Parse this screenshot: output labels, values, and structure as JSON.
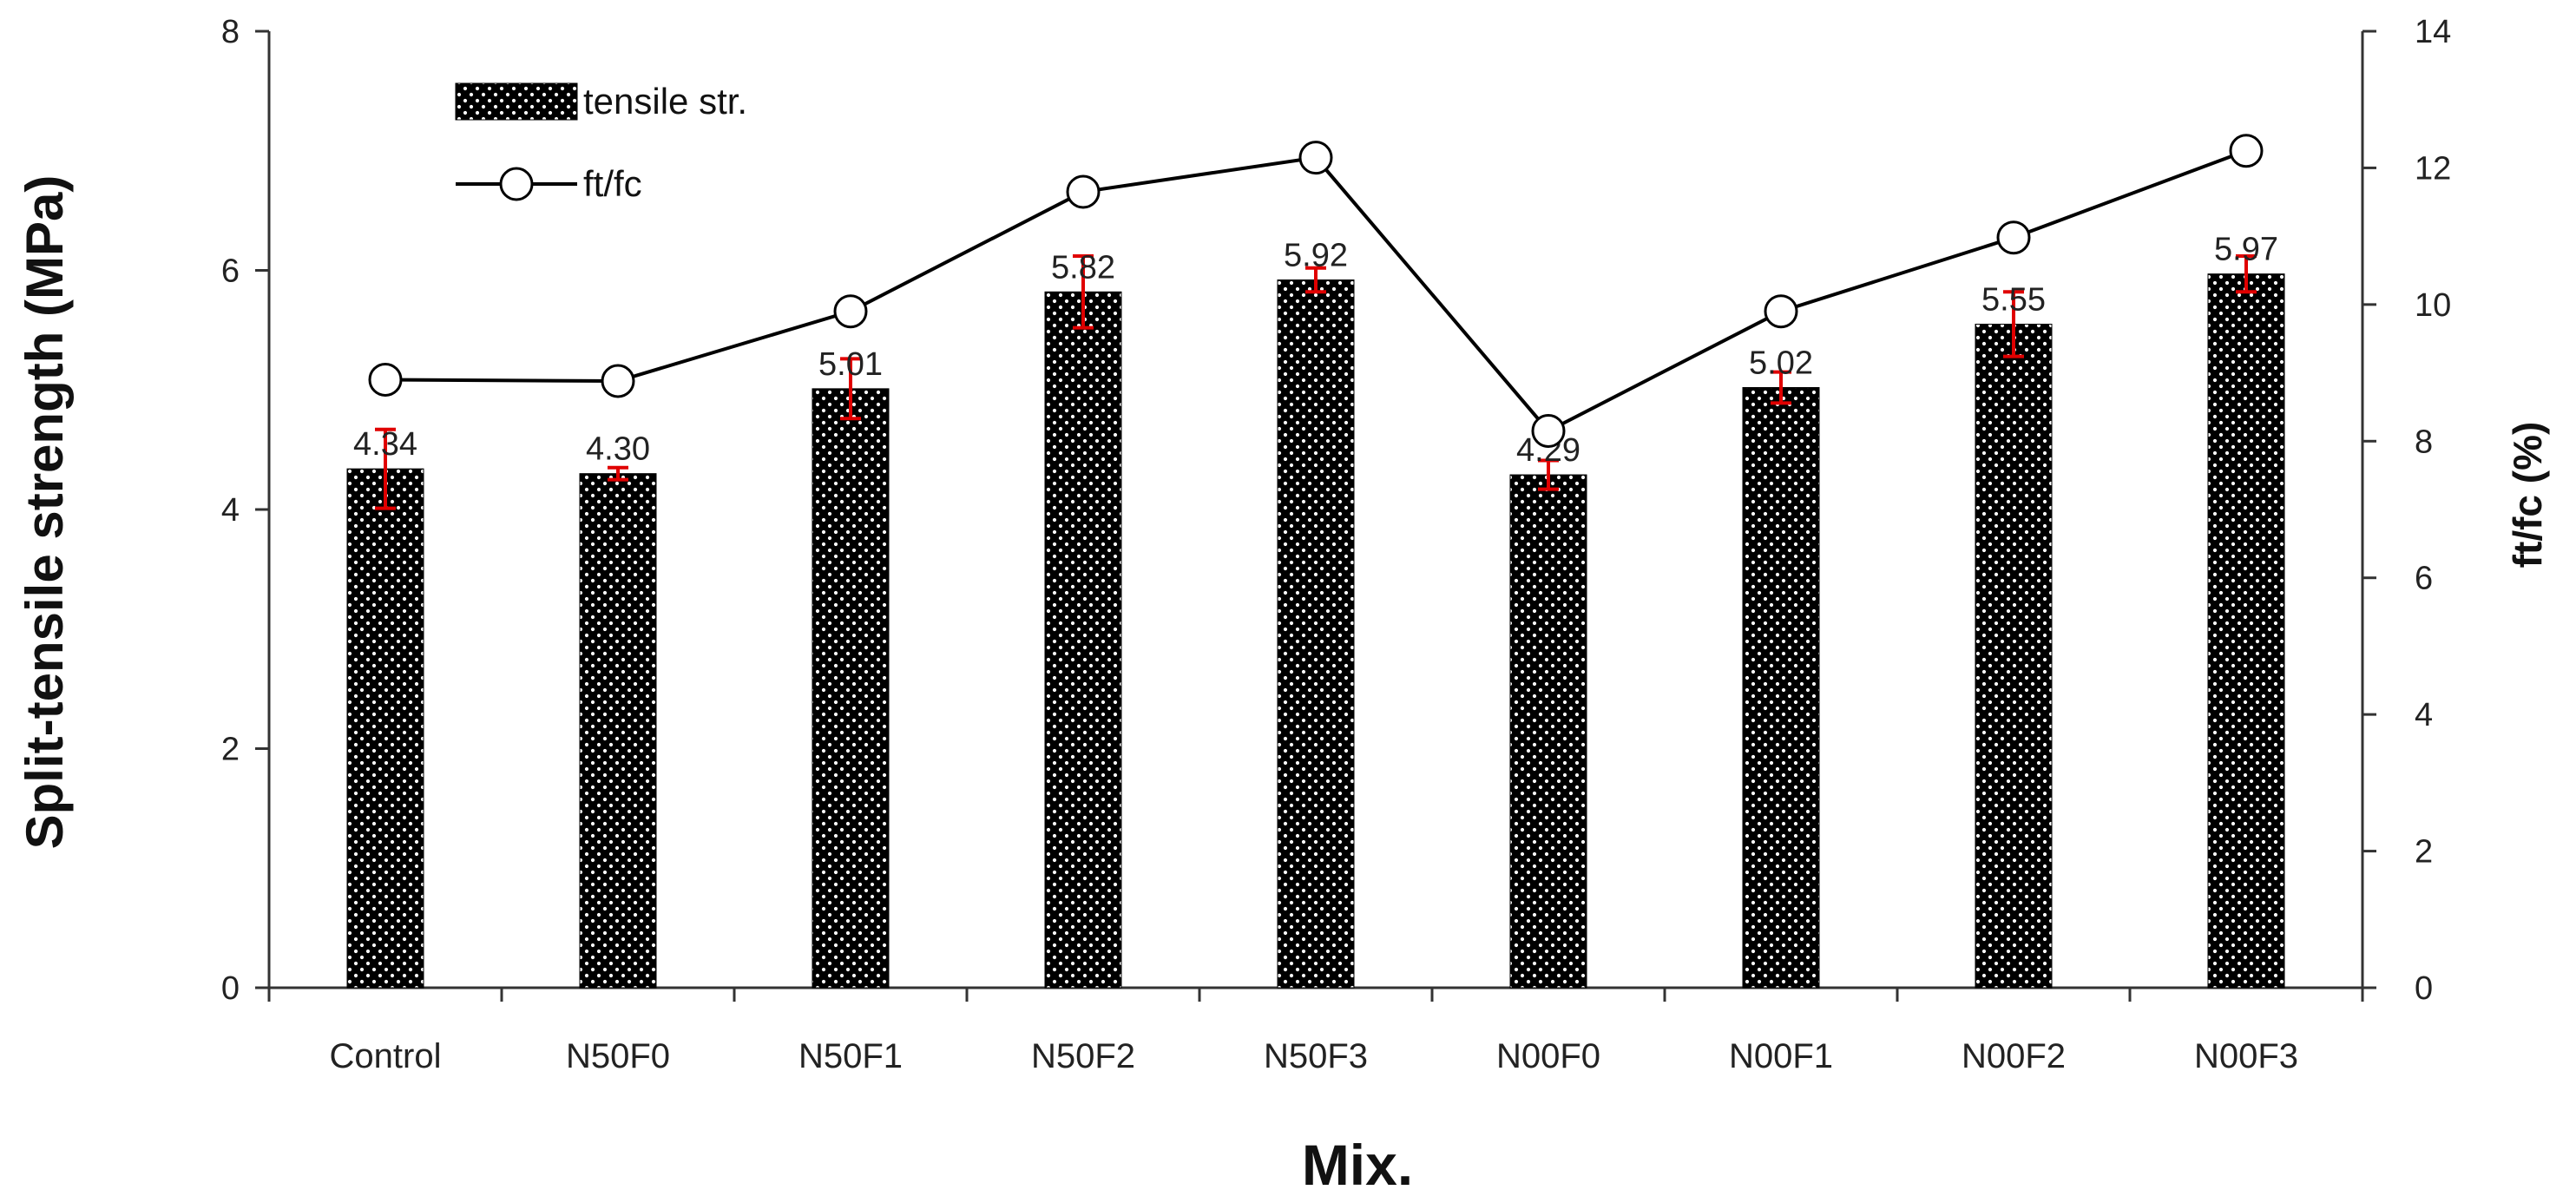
{
  "chart_data": {
    "type": "bar+line",
    "categories": [
      "Control",
      "N50F0",
      "N50F1",
      "N50F2",
      "N50F3",
      "N00F0",
      "N00F1",
      "N00F2",
      "N00F3"
    ],
    "series": [
      {
        "name": "tensile str.",
        "type": "bar",
        "axis": "left",
        "values": [
          4.34,
          4.3,
          5.01,
          5.82,
          5.92,
          4.29,
          5.02,
          5.55,
          5.97
        ],
        "error": [
          0.33,
          0.05,
          0.25,
          0.3,
          0.1,
          0.12,
          0.13,
          0.27,
          0.15
        ],
        "data_labels": [
          "4.34",
          "4.30",
          "5.01",
          "5.82",
          "5.92",
          "4.29",
          "5.02",
          "5.55",
          "5.97"
        ],
        "color": "#000000",
        "error_color": "#e00000"
      },
      {
        "name": "ft/fc",
        "type": "line",
        "axis": "right",
        "values": [
          8.9,
          8.88,
          9.9,
          11.65,
          12.15,
          8.15,
          9.9,
          10.98,
          12.25
        ],
        "color": "#000000"
      }
    ],
    "xlabel": "Mix.",
    "ylabel": "Split-tensile strength (MPa)",
    "y2label": "ft/fc (%)",
    "ylim": [
      0,
      8
    ],
    "y2lim": [
      0,
      14
    ],
    "yticks": [
      "0",
      "2",
      "4",
      "6",
      "8"
    ],
    "y2ticks": [
      "0",
      "2",
      "4",
      "6",
      "8",
      "10",
      "12",
      "14"
    ],
    "legend": [
      "tensile str.",
      "ft/fc"
    ],
    "legend_position": "top-left",
    "grid": false
  }
}
